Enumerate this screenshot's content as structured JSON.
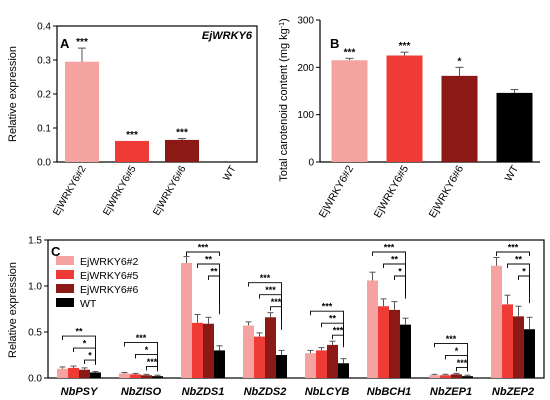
{
  "colors": {
    "EjWRKY6#2": "#f4a3a1",
    "EjWRKY6#5": "#ee3b36",
    "EjWRKY6#6": "#8b1a17",
    "WT": "#000000"
  },
  "chart_data": [
    {
      "panel": "A",
      "type": "bar",
      "title": "EjWRKY6",
      "ylabel": "Relative expression",
      "ylim": [
        0,
        0.4
      ],
      "yticks": [
        "0.0",
        "0.1",
        "0.2",
        "0.3",
        "0.4"
      ],
      "categories": [
        "EjWRKY6#2",
        "EjWRKY6#5",
        "EjWRKY6#6",
        "WT"
      ],
      "values": [
        0.295,
        0.062,
        0.065,
        0.0
      ],
      "errors": [
        0.04,
        0.0,
        0.004,
        0.0
      ],
      "significance": [
        "***",
        "***",
        "***",
        ""
      ]
    },
    {
      "panel": "B",
      "type": "bar",
      "ylabel": "Total carotenoid content (mg kg",
      "ylabel_sup": "-1",
      "ylabel_end": ")",
      "ylim": [
        0,
        300
      ],
      "yticks": [
        "0",
        "100",
        "200",
        "300"
      ],
      "categories": [
        "EjWRKY6#2",
        "EjWRKY6#5",
        "EjWRKY6#6",
        "WT"
      ],
      "values": [
        215,
        225,
        182,
        146
      ],
      "errors": [
        4,
        7,
        18,
        7
      ],
      "significance": [
        "***",
        "***",
        "*",
        ""
      ]
    },
    {
      "panel": "C",
      "type": "bar",
      "ylabel": "Relative expression",
      "ylim": [
        0,
        1.5
      ],
      "yticks": [
        "0.0",
        "0.5",
        "1.0",
        "1.5"
      ],
      "categories": [
        "NbPSY",
        "NbZISO",
        "NbZDS1",
        "NbZDS2",
        "NbLCYB",
        "NbBCH1",
        "NbZEP1",
        "NbZEP2"
      ],
      "series": [
        {
          "name": "EjWRKY6#2",
          "values": [
            0.1,
            0.05,
            1.25,
            0.57,
            0.27,
            1.06,
            0.03,
            1.22
          ],
          "errors": [
            0.02,
            0.01,
            0.07,
            0.04,
            0.03,
            0.09,
            0.01,
            0.09
          ]
        },
        {
          "name": "EjWRKY6#5",
          "values": [
            0.11,
            0.04,
            0.6,
            0.45,
            0.3,
            0.78,
            0.03,
            0.8
          ],
          "errors": [
            0.02,
            0.01,
            0.09,
            0.04,
            0.03,
            0.08,
            0.01,
            0.1
          ]
        },
        {
          "name": "EjWRKY6#6",
          "values": [
            0.09,
            0.03,
            0.59,
            0.66,
            0.36,
            0.74,
            0.04,
            0.67
          ],
          "errors": [
            0.02,
            0.01,
            0.07,
            0.05,
            0.04,
            0.09,
            0.01,
            0.11
          ]
        },
        {
          "name": "WT",
          "values": [
            0.06,
            0.02,
            0.3,
            0.25,
            0.16,
            0.58,
            0.02,
            0.53
          ],
          "errors": [
            0.01,
            0.01,
            0.05,
            0.05,
            0.05,
            0.07,
            0.01,
            0.13
          ]
        }
      ],
      "significance": [
        [
          "**",
          "*",
          "*"
        ],
        [
          "***",
          "*",
          "***"
        ],
        [
          "***",
          "**",
          "**"
        ],
        [
          "***",
          "***",
          "***"
        ],
        [
          "***",
          "**",
          "***"
        ],
        [
          "***",
          "**",
          "*"
        ],
        [
          "***",
          "*",
          "***"
        ],
        [
          "***",
          "**",
          "*"
        ]
      ]
    }
  ]
}
